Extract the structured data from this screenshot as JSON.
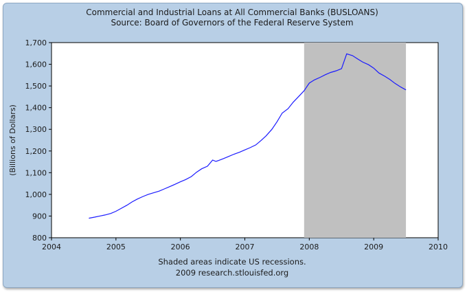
{
  "title": "Commercial and Industrial Loans at All Commercial Banks (BUSLOANS)",
  "subtitle": "Source: Board of Governors of the Federal Reserve System",
  "footer_note": "Shaded areas indicate US recessions.",
  "footer_source": "2009 research.stlouisfed.org",
  "colors": {
    "background": "#b8cfe6",
    "plot_area": "#ffffff",
    "recession": "#c0c0c0",
    "line": "#1a1aff"
  },
  "chart_data": {
    "type": "line",
    "title": "Commercial and Industrial Loans at All Commercial Banks (BUSLOANS)",
    "subtitle": "Source: Board of Governors of the Federal Reserve System",
    "xlabel": "",
    "ylabel": "(Billions of Dollars)",
    "xlim": [
      2004,
      2010
    ],
    "ylim": [
      800,
      1700
    ],
    "x_ticks": [
      "2004",
      "2005",
      "2006",
      "2007",
      "2008",
      "2009",
      "2010"
    ],
    "y_ticks": [
      "800",
      "900",
      "1,000",
      "1,100",
      "1,200",
      "1,300",
      "1,400",
      "1,500",
      "1,600",
      "1,700"
    ],
    "grid": false,
    "recessions": [
      {
        "start": 2007.92,
        "end": 2009.5
      }
    ],
    "series": [
      {
        "x": [
          2004.58,
          2004.67,
          2004.75,
          2004.83,
          2004.92,
          2005.0,
          2005.08,
          2005.17,
          2005.25,
          2005.33,
          2005.42,
          2005.5,
          2005.58,
          2005.67,
          2005.75,
          2005.83,
          2005.92,
          2006.0,
          2006.08,
          2006.17,
          2006.25,
          2006.33,
          2006.42,
          2006.5,
          2006.55,
          2006.58,
          2006.67,
          2006.75,
          2006.83,
          2006.92,
          2007.0,
          2007.08,
          2007.17,
          2007.25,
          2007.33,
          2007.42,
          2007.5,
          2007.58,
          2007.67,
          2007.75,
          2007.83,
          2007.92,
          2008.0,
          2008.08,
          2008.17,
          2008.25,
          2008.33,
          2008.42,
          2008.5,
          2008.58,
          2008.67,
          2008.75,
          2008.83,
          2008.92,
          2009.0,
          2009.08,
          2009.17,
          2009.25,
          2009.33,
          2009.42,
          2009.5
        ],
        "y": [
          890,
          895,
          900,
          905,
          912,
          922,
          935,
          950,
          965,
          978,
          990,
          1000,
          1007,
          1015,
          1025,
          1035,
          1047,
          1058,
          1068,
          1082,
          1102,
          1118,
          1130,
          1158,
          1152,
          1155,
          1165,
          1175,
          1185,
          1195,
          1205,
          1215,
          1228,
          1248,
          1270,
          1300,
          1335,
          1375,
          1395,
          1425,
          1450,
          1478,
          1513,
          1528,
          1540,
          1552,
          1562,
          1570,
          1580,
          1648,
          1640,
          1625,
          1610,
          1598,
          1582,
          1560,
          1545,
          1530,
          1512,
          1495,
          1482
        ]
      }
    ]
  }
}
